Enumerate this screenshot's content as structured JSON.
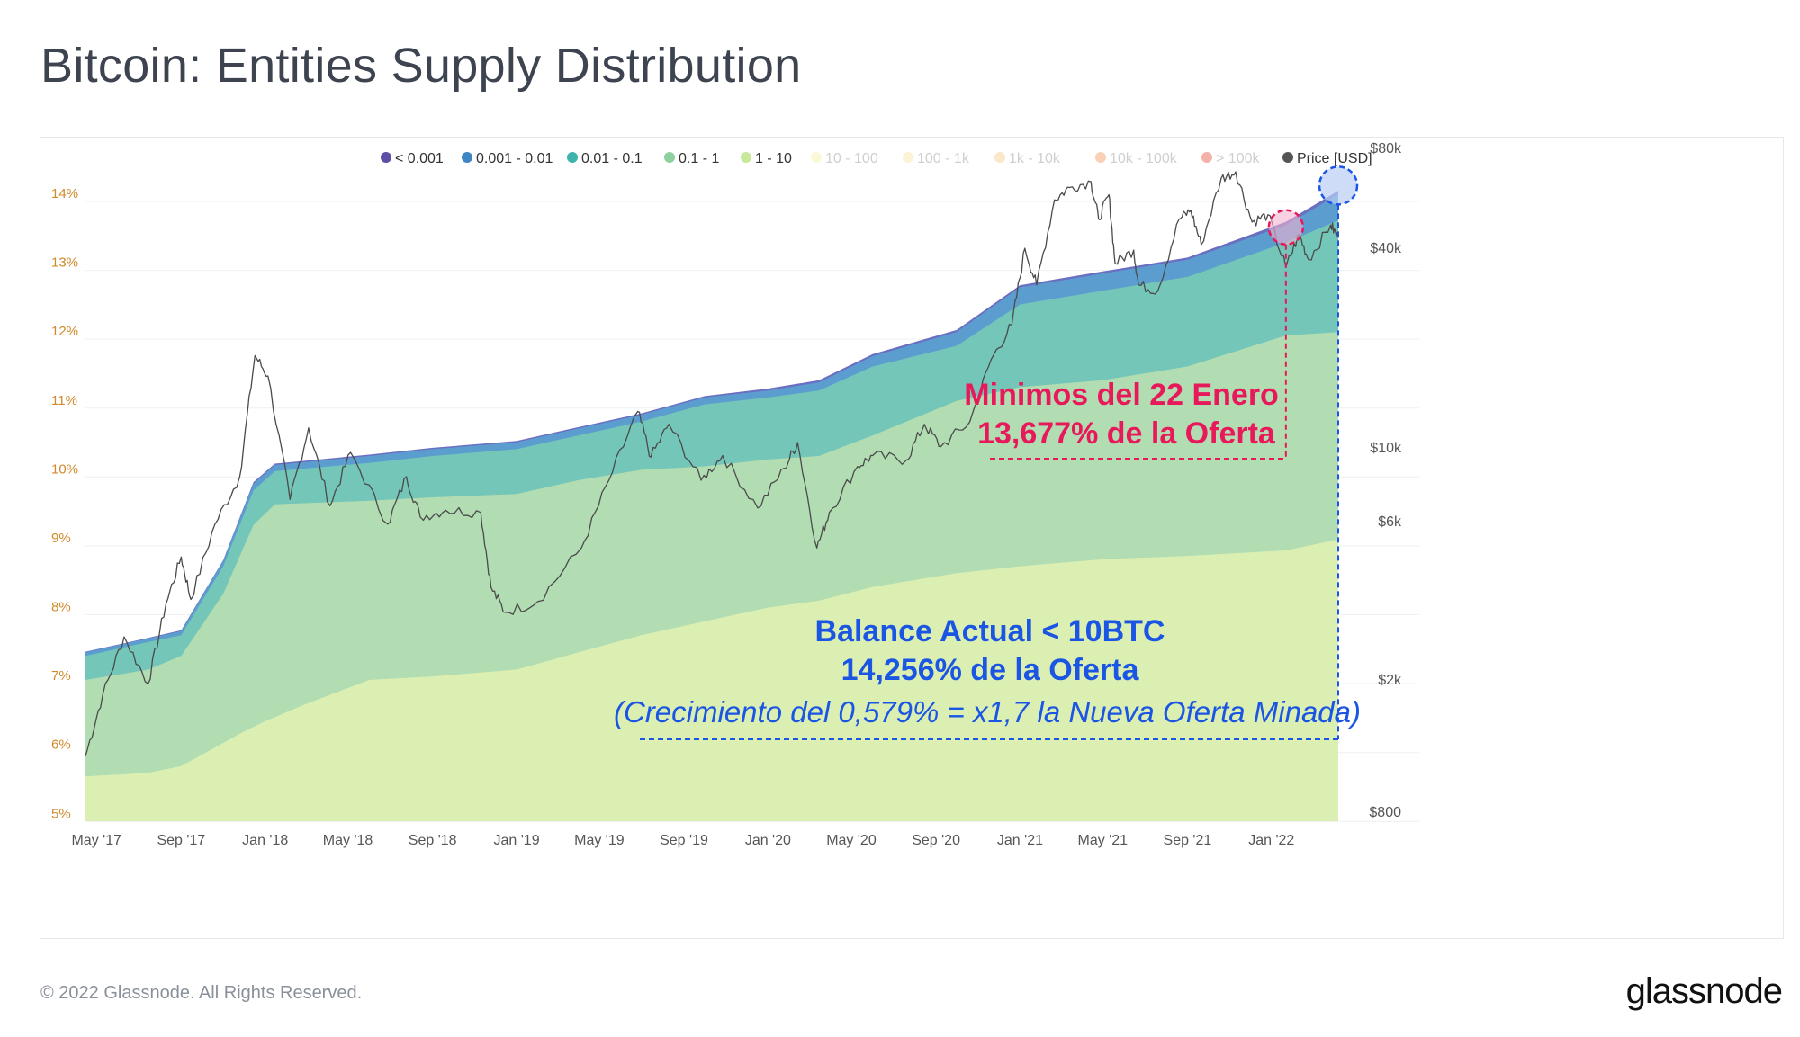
{
  "page": {
    "title": "Bitcoin: Entities Supply Distribution",
    "footer": "© 2022 Glassnode. All Rights Reserved.",
    "logo": "glassnode",
    "watermark": "glassnode"
  },
  "chart_data": {
    "type": "area",
    "title": "Bitcoin: Entities Supply Distribution",
    "legend_position": "top-right",
    "legend": [
      {
        "label": "< 0.001",
        "color": "#5b4fa6",
        "dim": false
      },
      {
        "label": "0.001 - 0.01",
        "color": "#3f86c4",
        "dim": false
      },
      {
        "label": "0.01 - 0.1",
        "color": "#3fb3ac",
        "dim": false
      },
      {
        "label": "0.1 - 1",
        "color": "#8fd19e",
        "dim": false
      },
      {
        "label": "1 - 10",
        "color": "#c8e89a",
        "dim": false
      },
      {
        "label": "10 - 100",
        "color": "#f4f0a4",
        "dim": true
      },
      {
        "label": "100 - 1k",
        "color": "#f9e3a0",
        "dim": true
      },
      {
        "label": "1k - 10k",
        "color": "#f7c98a",
        "dim": true
      },
      {
        "label": "10k - 100k",
        "color": "#f39a5e",
        "dim": true
      },
      {
        "label": "> 100k",
        "color": "#e5533c",
        "dim": true
      },
      {
        "label": "Price [USD]",
        "color": "#555555",
        "dim": false
      }
    ],
    "x_ticks": [
      "May '17",
      "Sep '17",
      "Jan '18",
      "May '18",
      "Sep '18",
      "Jan '19",
      "May '19",
      "Sep '19",
      "Jan '20",
      "May '20",
      "Sep '20",
      "Jan '21",
      "May '21",
      "Sep '21",
      "Jan '22"
    ],
    "y_left": {
      "ticks": [
        "14%",
        "13%",
        "12%",
        "11%",
        "10%",
        "9%",
        "8%",
        "7%",
        "6%",
        "5%"
      ],
      "values": [
        14,
        13,
        12,
        11,
        10,
        9,
        8,
        7,
        6,
        5
      ],
      "range": [
        4.9,
        14.3
      ]
    },
    "y_right": {
      "scale": "log",
      "ticks": [
        "$80k",
        "$40k",
        "$10k",
        "$6k",
        "$2k",
        "$800"
      ],
      "values": [
        80000,
        40000,
        10000,
        6000,
        2000,
        800
      ]
    },
    "x_range": [
      "2017-04-15",
      "2022-04-08"
    ],
    "bands": [
      {
        "name": "1 - 10",
        "color": "#dcefb2",
        "points": [
          [
            "2017-04-15",
            5.55
          ],
          [
            "2017-07-15",
            5.6
          ],
          [
            "2017-09-01",
            5.7
          ],
          [
            "2017-12-01",
            6.2
          ],
          [
            "2018-01-01",
            6.35
          ],
          [
            "2018-03-01",
            6.6
          ],
          [
            "2018-06-01",
            6.95
          ],
          [
            "2018-09-01",
            7.0
          ],
          [
            "2019-01-01",
            7.1
          ],
          [
            "2019-04-01",
            7.35
          ],
          [
            "2019-07-01",
            7.6
          ],
          [
            "2019-10-01",
            7.8
          ],
          [
            "2020-01-01",
            8.0
          ],
          [
            "2020-03-15",
            8.1
          ],
          [
            "2020-06-01",
            8.3
          ],
          [
            "2020-10-01",
            8.5
          ],
          [
            "2021-01-01",
            8.6
          ],
          [
            "2021-05-01",
            8.7
          ],
          [
            "2021-09-01",
            8.75
          ],
          [
            "2022-01-22",
            8.83
          ],
          [
            "2022-04-08",
            8.99
          ]
        ]
      },
      {
        "name": "0.1 - 1",
        "color": "#b2ddb3",
        "points": [
          [
            "2017-04-15",
            6.95
          ],
          [
            "2017-07-15",
            7.1
          ],
          [
            "2017-09-01",
            7.3
          ],
          [
            "2017-11-01",
            8.2
          ],
          [
            "2017-12-15",
            9.2
          ],
          [
            "2018-01-15",
            9.5
          ],
          [
            "2018-06-01",
            9.55
          ],
          [
            "2018-09-01",
            9.6
          ],
          [
            "2019-01-01",
            9.65
          ],
          [
            "2019-04-01",
            9.85
          ],
          [
            "2019-07-01",
            10.0
          ],
          [
            "2019-10-01",
            10.05
          ],
          [
            "2020-01-01",
            10.15
          ],
          [
            "2020-03-15",
            10.2
          ],
          [
            "2020-06-01",
            10.5
          ],
          [
            "2020-10-01",
            11.0
          ],
          [
            "2021-01-01",
            11.2
          ],
          [
            "2021-05-01",
            11.3
          ],
          [
            "2021-09-01",
            11.5
          ],
          [
            "2022-01-22",
            11.95
          ],
          [
            "2022-04-08",
            12.0
          ]
        ]
      },
      {
        "name": "0.01 - 0.1",
        "color": "#74c6b8",
        "points": [
          [
            "2017-04-15",
            7.3
          ],
          [
            "2017-07-15",
            7.5
          ],
          [
            "2017-09-01",
            7.6
          ],
          [
            "2017-11-01",
            8.6
          ],
          [
            "2017-12-15",
            9.7
          ],
          [
            "2018-01-15",
            9.98
          ],
          [
            "2018-06-01",
            10.1
          ],
          [
            "2018-09-01",
            10.2
          ],
          [
            "2019-01-01",
            10.3
          ],
          [
            "2019-04-01",
            10.5
          ],
          [
            "2019-07-01",
            10.7
          ],
          [
            "2019-10-01",
            10.95
          ],
          [
            "2020-01-01",
            11.05
          ],
          [
            "2020-03-15",
            11.15
          ],
          [
            "2020-06-01",
            11.5
          ],
          [
            "2020-10-01",
            11.8
          ],
          [
            "2021-01-01",
            12.4
          ],
          [
            "2021-05-01",
            12.6
          ],
          [
            "2021-09-01",
            12.8
          ],
          [
            "2022-01-22",
            13.3
          ],
          [
            "2022-04-08",
            13.62
          ]
        ]
      },
      {
        "name": "0.001 - 0.01",
        "color": "#5c9dcf",
        "points": [
          [
            "2017-04-15",
            7.35
          ],
          [
            "2017-07-15",
            7.55
          ],
          [
            "2017-09-01",
            7.66
          ],
          [
            "2017-11-01",
            8.68
          ],
          [
            "2017-12-15",
            9.8
          ],
          [
            "2018-01-15",
            10.07
          ],
          [
            "2018-06-01",
            10.2
          ],
          [
            "2018-09-01",
            10.3
          ],
          [
            "2019-01-01",
            10.4
          ],
          [
            "2019-04-01",
            10.6
          ],
          [
            "2019-07-01",
            10.8
          ],
          [
            "2019-10-01",
            11.05
          ],
          [
            "2020-01-01",
            11.15
          ],
          [
            "2020-03-15",
            11.27
          ],
          [
            "2020-06-01",
            11.65
          ],
          [
            "2020-10-01",
            12.0
          ],
          [
            "2021-01-01",
            12.65
          ],
          [
            "2021-05-01",
            12.85
          ],
          [
            "2021-09-01",
            13.05
          ],
          [
            "2022-01-22",
            13.55
          ],
          [
            "2022-04-08",
            14.0
          ]
        ]
      },
      {
        "name": "< 0.001",
        "color": "#6a6fc2",
        "points": [
          [
            "2017-04-15",
            7.36
          ],
          [
            "2017-07-15",
            7.56
          ],
          [
            "2017-09-01",
            7.67
          ],
          [
            "2017-11-01",
            8.69
          ],
          [
            "2017-12-15",
            9.82
          ],
          [
            "2018-01-15",
            10.09
          ],
          [
            "2018-06-01",
            10.22
          ],
          [
            "2018-09-01",
            10.32
          ],
          [
            "2019-01-01",
            10.42
          ],
          [
            "2019-04-01",
            10.62
          ],
          [
            "2019-07-01",
            10.82
          ],
          [
            "2019-10-01",
            11.07
          ],
          [
            "2020-01-01",
            11.18
          ],
          [
            "2020-03-15",
            11.3
          ],
          [
            "2020-06-01",
            11.68
          ],
          [
            "2020-10-01",
            12.03
          ],
          [
            "2021-01-01",
            12.68
          ],
          [
            "2021-05-01",
            12.88
          ],
          [
            "2021-09-01",
            13.08
          ],
          [
            "2022-01-22",
            13.6
          ],
          [
            "2022-04-08",
            14.05
          ]
        ]
      }
    ],
    "price": [
      [
        "2017-04-15",
        1180
      ],
      [
        "2017-05-10",
        1800
      ],
      [
        "2017-06-10",
        2700
      ],
      [
        "2017-07-15",
        1950
      ],
      [
        "2017-08-10",
        3400
      ],
      [
        "2017-09-01",
        4700
      ],
      [
        "2017-09-15",
        3500
      ],
      [
        "2017-10-20",
        5900
      ],
      [
        "2017-11-25",
        8200
      ],
      [
        "2017-12-17",
        19000
      ],
      [
        "2018-01-05",
        16500
      ],
      [
        "2018-02-06",
        7000
      ],
      [
        "2018-03-05",
        11500
      ],
      [
        "2018-04-05",
        6700
      ],
      [
        "2018-05-05",
        9700
      ],
      [
        "2018-06-28",
        5900
      ],
      [
        "2018-07-25",
        8200
      ],
      [
        "2018-08-14",
        6200
      ],
      [
        "2018-09-20",
        6500
      ],
      [
        "2018-11-10",
        6400
      ],
      [
        "2018-11-25",
        3800
      ],
      [
        "2018-12-15",
        3200
      ],
      [
        "2019-02-01",
        3450
      ],
      [
        "2019-04-05",
        5000
      ],
      [
        "2019-05-15",
        8000
      ],
      [
        "2019-06-26",
        12900
      ],
      [
        "2019-07-15",
        9400
      ],
      [
        "2019-08-10",
        11800
      ],
      [
        "2019-09-26",
        8000
      ],
      [
        "2019-10-27",
        9500
      ],
      [
        "2019-12-17",
        6600
      ],
      [
        "2020-01-25",
        8700
      ],
      [
        "2020-02-13",
        10400
      ],
      [
        "2020-03-12",
        5000
      ],
      [
        "2020-03-30",
        6400
      ],
      [
        "2020-05-10",
        8800
      ],
      [
        "2020-06-01",
        9500
      ],
      [
        "2020-07-20",
        9200
      ],
      [
        "2020-08-15",
        11800
      ],
      [
        "2020-09-08",
        10100
      ],
      [
        "2020-10-20",
        12000
      ],
      [
        "2020-11-20",
        18500
      ],
      [
        "2020-12-20",
        23500
      ],
      [
        "2021-01-08",
        40000
      ],
      [
        "2021-01-25",
        31000
      ],
      [
        "2021-02-20",
        56000
      ],
      [
        "2021-03-14",
        61000
      ],
      [
        "2021-04-14",
        63500
      ],
      [
        "2021-04-25",
        49000
      ],
      [
        "2021-05-10",
        58000
      ],
      [
        "2021-05-19",
        36000
      ],
      [
        "2021-06-15",
        39500
      ],
      [
        "2021-06-22",
        31000
      ],
      [
        "2021-07-20",
        29800
      ],
      [
        "2021-08-20",
        49000
      ],
      [
        "2021-09-06",
        52000
      ],
      [
        "2021-09-21",
        41000
      ],
      [
        "2021-10-20",
        65000
      ],
      [
        "2021-11-10",
        68000
      ],
      [
        "2021-12-04",
        48000
      ],
      [
        "2021-12-27",
        50500
      ],
      [
        "2022-01-22",
        35000
      ],
      [
        "2022-02-10",
        44000
      ],
      [
        "2022-02-24",
        37000
      ],
      [
        "2022-03-28",
        47000
      ],
      [
        "2022-04-08",
        43000
      ]
    ],
    "annotations": [
      {
        "id": "enero",
        "lines": [
          "Minimos del 22 Enero",
          "13,677% de la Oferta"
        ],
        "color": "#e8195a",
        "date": "2022-01-22",
        "value": 13.677
      },
      {
        "id": "actual",
        "lines": [
          "Balance Actual < 10BTC",
          "14,256% de la Oferta",
          "(Crecimiento del 0,579% = x1,7 la Nueva Oferta Minada)"
        ],
        "color": "#1a55e3",
        "date": "2022-04-08",
        "value": 14.256
      }
    ]
  }
}
